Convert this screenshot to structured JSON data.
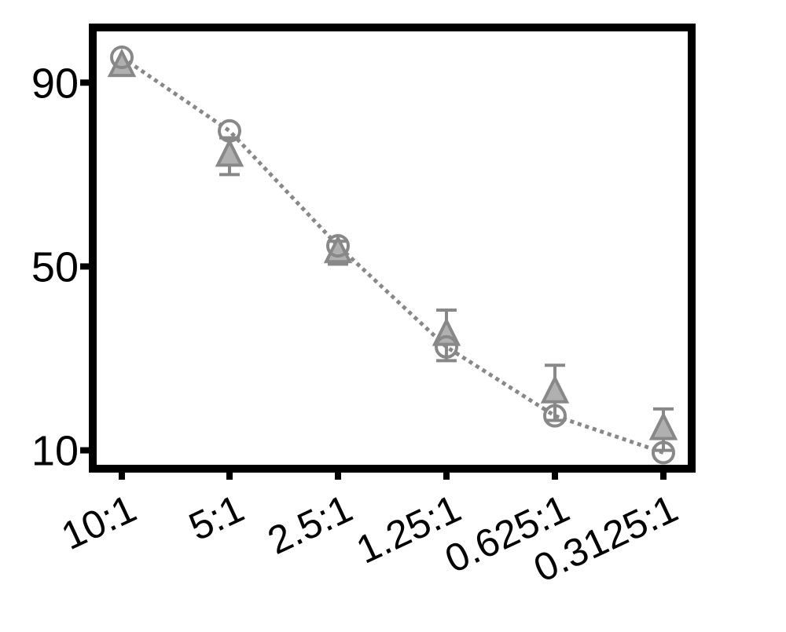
{
  "chart_data": {
    "type": "scatter",
    "title": "",
    "xlabel": "",
    "ylabel": "",
    "categories": [
      "10:1",
      "5:1",
      "2.5:1",
      "1.25:1",
      "0.625:1",
      "0.3125:1"
    ],
    "yticks": [
      10,
      50,
      90
    ],
    "ylim": [
      6,
      102
    ],
    "grid": false,
    "legend": "none",
    "series": [
      {
        "marker": "circle",
        "color": "#888888",
        "connect_line": "dotted",
        "values": [
          95.5,
          79.5,
          54.5,
          32.5,
          17.5,
          9.5
        ],
        "errors": [
          0,
          0,
          0,
          0,
          0,
          0
        ]
      },
      {
        "marker": "triangle",
        "color": "#888888",
        "fill": "#b0b0b0",
        "values": [
          93.5,
          74,
          53,
          35,
          22.5,
          14.5
        ],
        "errors": [
          0,
          4,
          2.5,
          5.5,
          6,
          4.5
        ]
      }
    ]
  }
}
